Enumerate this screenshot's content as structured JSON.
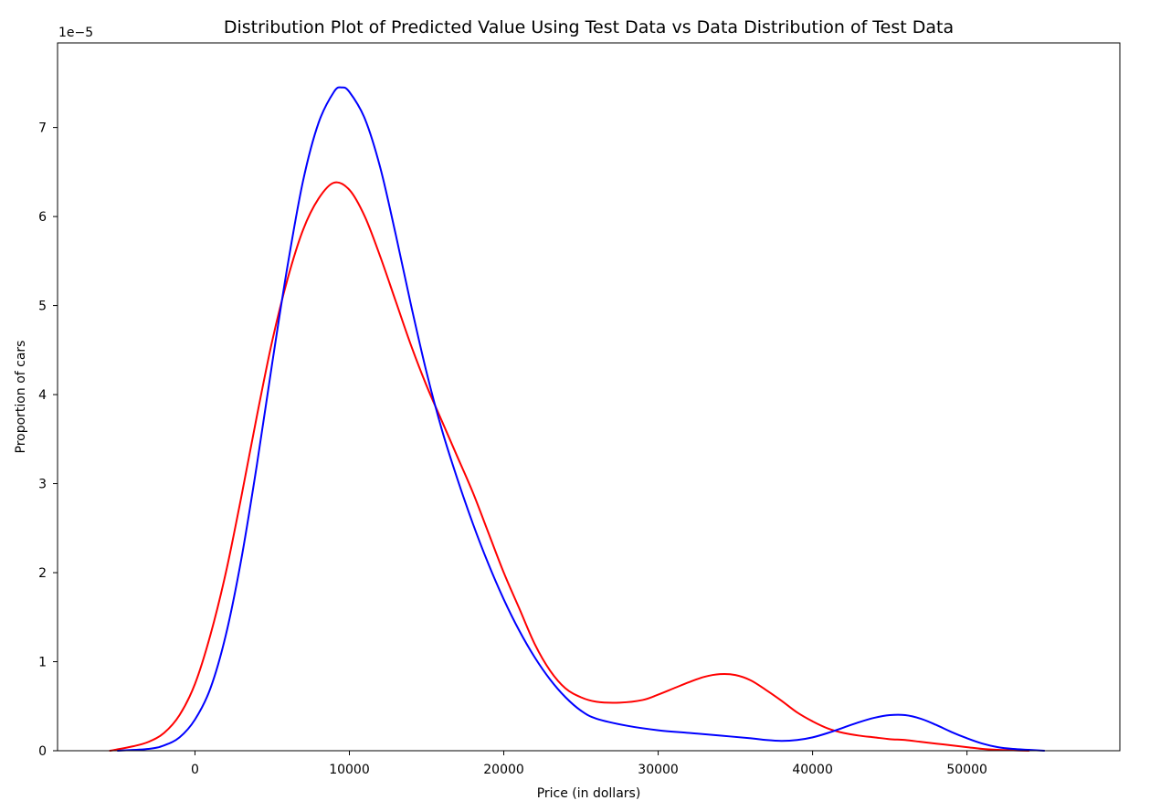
{
  "chart_data": {
    "type": "line",
    "title": "Distribution  Plot of  Predicted Value Using Test Data vs Data Distribution of Test Data",
    "xlabel": "Price (in dollars)",
    "ylabel": "Proportion of cars",
    "y_offset_label": "1e−5",
    "xlim": [
      -8900,
      59900
    ],
    "ylim": [
      0,
      7.95
    ],
    "x_ticks": [
      0,
      10000,
      20000,
      30000,
      40000,
      50000
    ],
    "x_tick_labels": [
      "0",
      "10000",
      "20000",
      "30000",
      "40000",
      "50000"
    ],
    "y_ticks": [
      0,
      1,
      2,
      3,
      4,
      5,
      6,
      7
    ],
    "y_tick_labels": [
      "0",
      "1",
      "2",
      "3",
      "4",
      "5",
      "6",
      "7"
    ],
    "grid": false,
    "series": [
      {
        "color": "#ff0000",
        "points": [
          [
            -5500,
            0.0
          ],
          [
            -4000,
            0.05
          ],
          [
            -3000,
            0.1
          ],
          [
            -2000,
            0.2
          ],
          [
            -1000,
            0.4
          ],
          [
            0,
            0.75
          ],
          [
            1000,
            1.3
          ],
          [
            2000,
            2.0
          ],
          [
            3000,
            2.85
          ],
          [
            4000,
            3.75
          ],
          [
            5000,
            4.6
          ],
          [
            6000,
            5.3
          ],
          [
            7000,
            5.85
          ],
          [
            8000,
            6.2
          ],
          [
            9000,
            6.38
          ],
          [
            10000,
            6.3
          ],
          [
            11000,
            6.0
          ],
          [
            12000,
            5.55
          ],
          [
            13000,
            5.05
          ],
          [
            14000,
            4.55
          ],
          [
            15000,
            4.1
          ],
          [
            16000,
            3.7
          ],
          [
            17000,
            3.3
          ],
          [
            18000,
            2.9
          ],
          [
            19000,
            2.45
          ],
          [
            20000,
            2.0
          ],
          [
            21000,
            1.6
          ],
          [
            22000,
            1.2
          ],
          [
            23000,
            0.9
          ],
          [
            24000,
            0.7
          ],
          [
            25000,
            0.6
          ],
          [
            26000,
            0.55
          ],
          [
            27500,
            0.54
          ],
          [
            29000,
            0.57
          ],
          [
            30000,
            0.63
          ],
          [
            31000,
            0.7
          ],
          [
            32000,
            0.77
          ],
          [
            33000,
            0.83
          ],
          [
            34000,
            0.86
          ],
          [
            35000,
            0.85
          ],
          [
            36000,
            0.79
          ],
          [
            37000,
            0.68
          ],
          [
            38000,
            0.56
          ],
          [
            39000,
            0.43
          ],
          [
            40000,
            0.33
          ],
          [
            41000,
            0.25
          ],
          [
            42000,
            0.2
          ],
          [
            43000,
            0.17
          ],
          [
            44000,
            0.15
          ],
          [
            45000,
            0.13
          ],
          [
            46000,
            0.12
          ],
          [
            47000,
            0.1
          ],
          [
            48000,
            0.08
          ],
          [
            49000,
            0.06
          ],
          [
            50000,
            0.04
          ],
          [
            51000,
            0.02
          ],
          [
            52000,
            0.01
          ],
          [
            53000,
            0.005
          ],
          [
            54000,
            0.0
          ]
        ]
      },
      {
        "color": "#0000ff",
        "points": [
          [
            -5000,
            0.0
          ],
          [
            -3000,
            0.02
          ],
          [
            -2000,
            0.06
          ],
          [
            -1000,
            0.15
          ],
          [
            0,
            0.35
          ],
          [
            1000,
            0.7
          ],
          [
            2000,
            1.3
          ],
          [
            3000,
            2.15
          ],
          [
            4000,
            3.2
          ],
          [
            5000,
            4.35
          ],
          [
            6000,
            5.45
          ],
          [
            7000,
            6.4
          ],
          [
            8000,
            7.05
          ],
          [
            9000,
            7.4
          ],
          [
            9500,
            7.45
          ],
          [
            10000,
            7.4
          ],
          [
            11000,
            7.1
          ],
          [
            12000,
            6.55
          ],
          [
            13000,
            5.8
          ],
          [
            14000,
            5.0
          ],
          [
            15000,
            4.25
          ],
          [
            16000,
            3.6
          ],
          [
            17000,
            3.05
          ],
          [
            18000,
            2.55
          ],
          [
            19000,
            2.1
          ],
          [
            20000,
            1.7
          ],
          [
            21000,
            1.35
          ],
          [
            22000,
            1.05
          ],
          [
            23000,
            0.8
          ],
          [
            24000,
            0.6
          ],
          [
            25000,
            0.45
          ],
          [
            26000,
            0.36
          ],
          [
            28000,
            0.28
          ],
          [
            30000,
            0.23
          ],
          [
            32000,
            0.2
          ],
          [
            34000,
            0.17
          ],
          [
            36000,
            0.14
          ],
          [
            37000,
            0.12
          ],
          [
            38000,
            0.11
          ],
          [
            39000,
            0.12
          ],
          [
            40000,
            0.15
          ],
          [
            41000,
            0.2
          ],
          [
            42000,
            0.26
          ],
          [
            43000,
            0.32
          ],
          [
            44000,
            0.37
          ],
          [
            45000,
            0.4
          ],
          [
            46000,
            0.4
          ],
          [
            47000,
            0.36
          ],
          [
            48000,
            0.29
          ],
          [
            49000,
            0.21
          ],
          [
            50000,
            0.14
          ],
          [
            51000,
            0.08
          ],
          [
            52000,
            0.04
          ],
          [
            53000,
            0.02
          ],
          [
            54000,
            0.01
          ],
          [
            55000,
            0.0
          ]
        ]
      }
    ]
  }
}
